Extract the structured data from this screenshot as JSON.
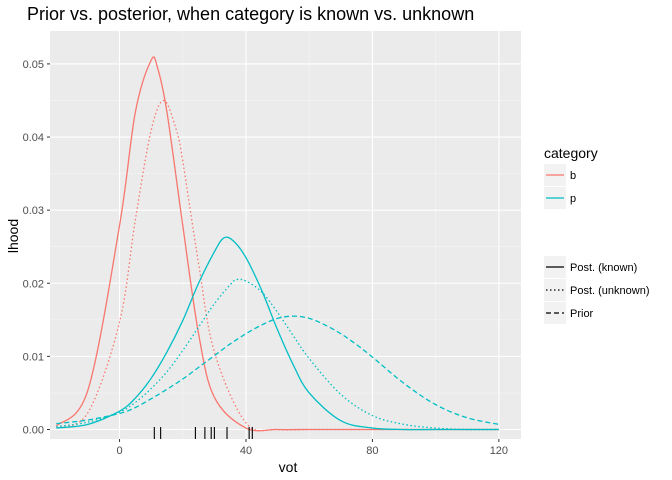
{
  "chart_data": {
    "type": "line",
    "title": "Prior vs. posterior, when category is known vs. unknown",
    "xlabel": "vot",
    "ylabel": "lhood",
    "xlim": [
      -22,
      127
    ],
    "ylim": [
      -0.0013,
      0.0545
    ],
    "x_ticks": [
      0,
      40,
      80,
      120
    ],
    "x_tick_labels": [
      "0",
      "40",
      "80",
      "120"
    ],
    "y_ticks": [
      0,
      0.01,
      0.02,
      0.03,
      0.04,
      0.05
    ],
    "y_tick_labels": [
      "0.00",
      "0.01",
      "0.02",
      "0.03",
      "0.04",
      "0.05"
    ],
    "grid": true,
    "series": [
      {
        "category": "b",
        "linetype": "Post. (known)",
        "color": "#F8766D",
        "x": [
          -20,
          -10,
          0,
          5,
          10,
          12,
          15,
          20,
          25,
          30,
          40,
          50,
          60,
          80,
          100,
          120
        ],
        "y": [
          0.0005,
          0.0054,
          0.0279,
          0.0434,
          0.0505,
          0.0495,
          0.0434,
          0.0279,
          0.0131,
          0.0044,
          0.0002,
          0.0,
          0.0,
          0.0,
          0.0,
          0.0
        ]
      },
      {
        "category": "b",
        "linetype": "Post. (unknown)",
        "color": "#F8766D",
        "x": [
          -20,
          -10,
          0,
          5,
          10,
          14,
          18,
          20,
          25,
          30,
          40,
          50,
          60,
          80,
          100,
          120
        ],
        "y": [
          0.0002,
          0.0023,
          0.0147,
          0.0287,
          0.0409,
          0.045,
          0.0409,
          0.0367,
          0.0227,
          0.0106,
          0.0009,
          0.0,
          0.0,
          0.0,
          0.0,
          0.0
        ]
      },
      {
        "category": "p",
        "linetype": "Post. (known)",
        "color": "#00BFC4",
        "x": [
          -20,
          -10,
          0,
          5,
          10,
          15,
          20,
          25,
          30,
          33,
          36,
          40,
          45,
          50,
          55,
          60,
          70,
          80,
          90,
          100,
          110,
          120
        ],
        "y": [
          0.0002,
          0.0007,
          0.0025,
          0.0043,
          0.007,
          0.0106,
          0.0149,
          0.02,
          0.0243,
          0.0262,
          0.0258,
          0.0235,
          0.019,
          0.0136,
          0.0088,
          0.005,
          0.0012,
          0.0002,
          0.0,
          0.0,
          0.0,
          0.0
        ]
      },
      {
        "category": "p",
        "linetype": "Post. (unknown)",
        "color": "#00BFC4",
        "x": [
          -20,
          -10,
          0,
          5,
          10,
          15,
          20,
          25,
          30,
          35,
          37,
          40,
          45,
          50,
          55,
          60,
          70,
          80,
          90,
          100,
          110,
          120
        ],
        "y": [
          0.0004,
          0.001,
          0.0024,
          0.0037,
          0.0056,
          0.0079,
          0.0108,
          0.014,
          0.0172,
          0.0198,
          0.0205,
          0.0203,
          0.0188,
          0.016,
          0.0128,
          0.0097,
          0.0048,
          0.0019,
          0.0007,
          0.0002,
          0.0,
          0.0
        ]
      },
      {
        "category": "p",
        "linetype": "Prior",
        "color": "#00BFC4",
        "x": [
          -20,
          -10,
          0,
          5,
          10,
          15,
          20,
          25,
          30,
          35,
          40,
          45,
          50,
          55,
          60,
          65,
          70,
          75,
          80,
          90,
          100,
          110,
          120
        ],
        "y": [
          0.0008,
          0.0013,
          0.0022,
          0.003,
          0.0042,
          0.0055,
          0.0069,
          0.0085,
          0.0101,
          0.0117,
          0.0131,
          0.0143,
          0.0152,
          0.0155,
          0.0152,
          0.0143,
          0.0131,
          0.0116,
          0.0099,
          0.0063,
          0.0034,
          0.0016,
          0.0007
        ]
      }
    ],
    "rug_x": [
      11,
      13,
      24,
      27,
      29,
      30,
      34,
      41,
      42
    ]
  },
  "legend": {
    "category_title": "category",
    "category_items": [
      {
        "label": "b",
        "color": "#F8766D"
      },
      {
        "label": "p",
        "color": "#00BFC4"
      }
    ],
    "linetype_items": [
      {
        "label": "Post. (known)",
        "dash": "solid"
      },
      {
        "label": "Post. (unknown)",
        "dash": "dotted"
      },
      {
        "label": "Prior",
        "dash": "dashed"
      }
    ]
  }
}
